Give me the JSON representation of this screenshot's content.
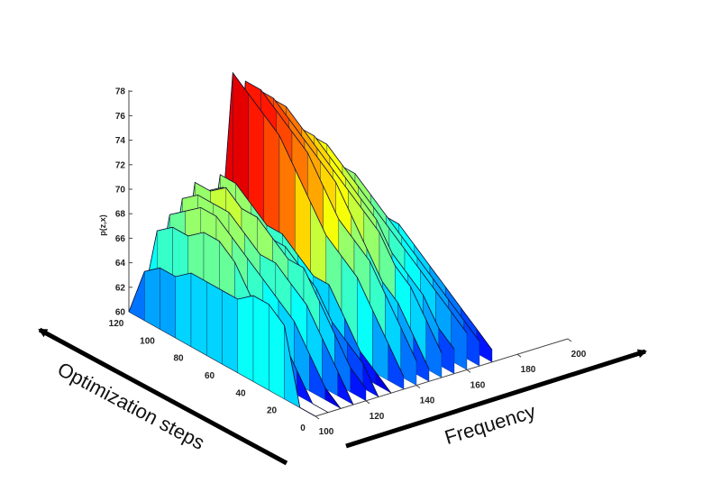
{
  "chart_data": {
    "type": "surface3d",
    "title": "",
    "zlabel": "p(z,x)",
    "x_axis_label": "Frequency",
    "y_axis_label": "Optimization steps",
    "x_ticks": [
      "100",
      "120",
      "140",
      "160",
      "180",
      "200"
    ],
    "y_ticks": [
      "0",
      "20",
      "40",
      "60",
      "80",
      "100",
      "120"
    ],
    "z_ticks": [
      "60",
      "62",
      "64",
      "66",
      "68",
      "70",
      "72",
      "74",
      "76",
      "78"
    ],
    "xlim": [
      100,
      200
    ],
    "ylim": [
      0,
      120
    ],
    "zlim": [
      60,
      78
    ],
    "colormap": "jet",
    "ridges": [
      {
        "frequency": 100,
        "values": [
          60,
          60,
          66,
          67,
          67,
          66,
          66,
          66,
          66,
          65,
          65,
          64,
          60
        ]
      },
      {
        "frequency": 105,
        "values": [
          60,
          60,
          62,
          64,
          65,
          66,
          68,
          69,
          69,
          68,
          68,
          67,
          60
        ]
      },
      {
        "frequency": 110,
        "values": [
          60,
          61,
          63,
          65,
          66,
          67,
          68,
          69,
          70,
          70,
          69,
          68,
          60
        ]
      },
      {
        "frequency": 115,
        "values": [
          60,
          62,
          64,
          66,
          67,
          68,
          68,
          69,
          70,
          70,
          70,
          69,
          60
        ]
      },
      {
        "frequency": 120,
        "values": [
          61,
          62,
          64,
          66,
          68,
          68,
          69,
          70,
          70,
          71,
          70,
          70,
          60
        ]
      },
      {
        "frequency": 125,
        "values": [
          60,
          62,
          63,
          64,
          66,
          67,
          68,
          68,
          69,
          69,
          70,
          69,
          60
        ]
      },
      {
        "frequency": 130,
        "values": [
          60,
          61,
          62,
          64,
          66,
          66,
          67,
          68,
          68,
          69,
          70,
          70,
          60
        ]
      },
      {
        "frequency": 135,
        "values": [
          61,
          63,
          65,
          67,
          68,
          69,
          71,
          73,
          75,
          76,
          77,
          78,
          60
        ]
      },
      {
        "frequency": 140,
        "values": [
          62,
          64,
          66,
          68,
          69,
          70,
          72,
          74,
          75,
          76,
          77,
          77,
          60
        ]
      },
      {
        "frequency": 145,
        "values": [
          61,
          63,
          65,
          66,
          68,
          70,
          72,
          73,
          74,
          75,
          76,
          76,
          60
        ]
      },
      {
        "frequency": 150,
        "values": [
          62,
          64,
          66,
          67,
          69,
          70,
          71,
          72,
          73,
          74,
          75,
          75,
          60
        ]
      },
      {
        "frequency": 155,
        "values": [
          62,
          63,
          65,
          66,
          67,
          69,
          70,
          71,
          72,
          73,
          73,
          74,
          60
        ]
      },
      {
        "frequency": 160,
        "values": [
          63,
          64,
          65,
          66,
          67,
          68,
          69,
          70,
          71,
          72,
          72,
          72,
          60
        ]
      },
      {
        "frequency": 165,
        "values": [
          62,
          63,
          64,
          65,
          66,
          67,
          68,
          69,
          70,
          70,
          70,
          70,
          60
        ]
      },
      {
        "frequency": 170,
        "values": [
          61,
          62,
          63,
          64,
          65,
          66,
          67,
          67,
          68,
          68,
          68,
          67,
          60
        ]
      }
    ]
  }
}
